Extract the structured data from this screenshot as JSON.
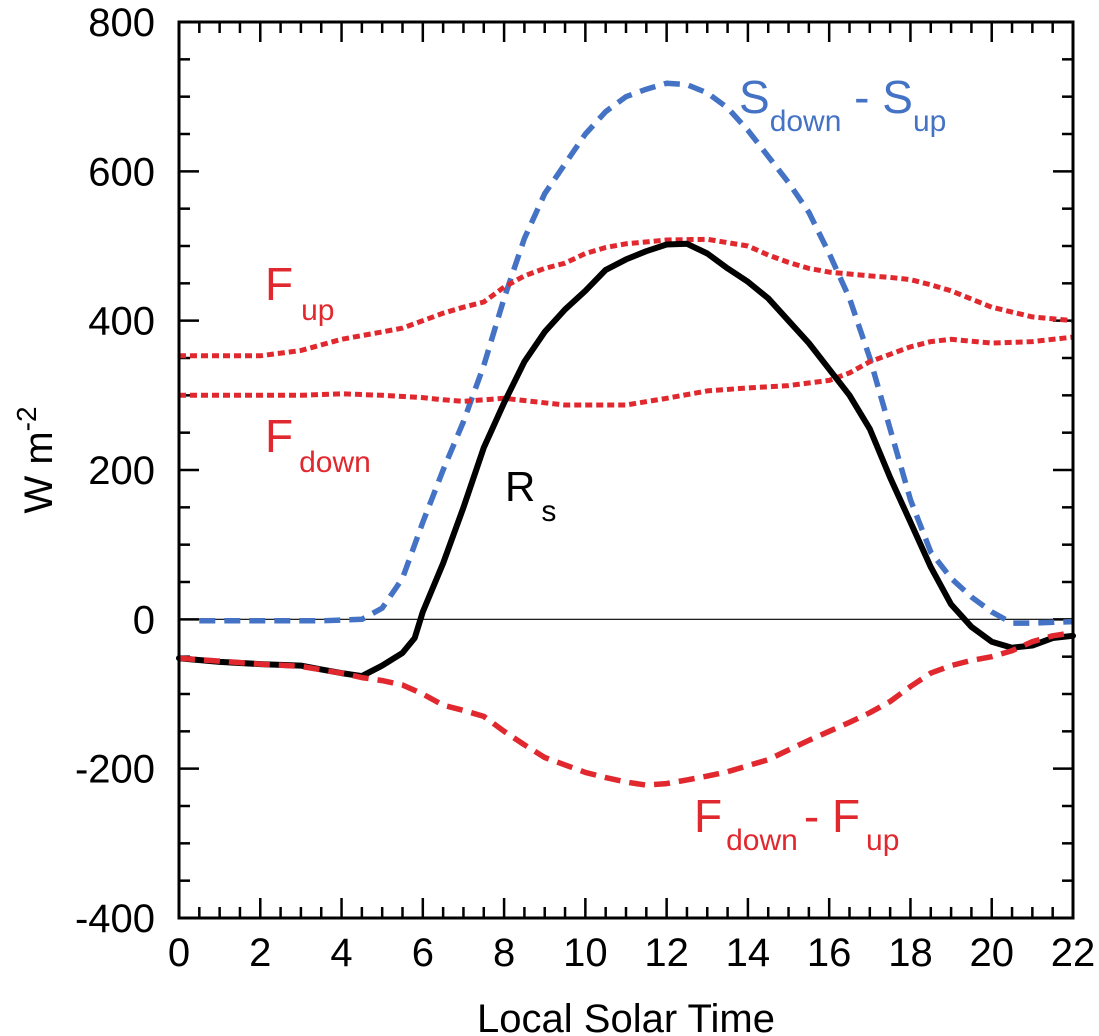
{
  "chart_data": {
    "type": "line",
    "title": "",
    "xlabel": "Local Solar Time",
    "ylabel": "W m",
    "ylabel_sup": "-2",
    "xlim": [
      0,
      22
    ],
    "ylim": [
      -400,
      800
    ],
    "xticks": [
      0,
      2,
      4,
      6,
      8,
      10,
      12,
      14,
      16,
      18,
      20,
      22
    ],
    "yticks": [
      -400,
      -200,
      0,
      200,
      400,
      600,
      800
    ],
    "x_minor_step": 0.5,
    "y_minor_step": 50,
    "zero_line": true,
    "grid": false,
    "series": [
      {
        "name": "S_down - S_up",
        "color": "#4472c4",
        "dash": "dashed",
        "points": [
          [
            0.5,
            -2
          ],
          [
            2,
            -2
          ],
          [
            3.5,
            -2
          ],
          [
            4.5,
            0
          ],
          [
            5,
            15
          ],
          [
            5.5,
            55
          ],
          [
            6,
            130
          ],
          [
            6.5,
            200
          ],
          [
            7,
            265
          ],
          [
            7.5,
            340
          ],
          [
            8,
            430
          ],
          [
            8.5,
            510
          ],
          [
            9,
            570
          ],
          [
            9.5,
            610
          ],
          [
            10,
            650
          ],
          [
            10.5,
            680
          ],
          [
            11,
            700
          ],
          [
            11.5,
            710
          ],
          [
            12,
            718
          ],
          [
            12.5,
            716
          ],
          [
            13,
            705
          ],
          [
            13.5,
            685
          ],
          [
            14,
            655
          ],
          [
            14.5,
            620
          ],
          [
            15,
            585
          ],
          [
            15.5,
            545
          ],
          [
            16,
            490
          ],
          [
            16.5,
            430
          ],
          [
            17,
            350
          ],
          [
            17.5,
            255
          ],
          [
            18,
            160
          ],
          [
            18.5,
            90
          ],
          [
            19,
            55
          ],
          [
            19.5,
            30
          ],
          [
            20,
            10
          ],
          [
            20.5,
            -5
          ],
          [
            21,
            -5
          ],
          [
            22,
            -3
          ]
        ]
      },
      {
        "name": "F_up",
        "color": "#e0282e",
        "dash": "dotted",
        "points": [
          [
            0,
            353
          ],
          [
            1,
            353
          ],
          [
            2,
            353
          ],
          [
            3,
            360
          ],
          [
            4,
            375
          ],
          [
            5,
            385
          ],
          [
            5.5,
            390
          ],
          [
            6,
            400
          ],
          [
            6.5,
            410
          ],
          [
            7,
            418
          ],
          [
            7.5,
            425
          ],
          [
            8,
            445
          ],
          [
            8.5,
            460
          ],
          [
            9,
            470
          ],
          [
            9.5,
            477
          ],
          [
            10,
            490
          ],
          [
            10.5,
            498
          ],
          [
            11,
            503
          ],
          [
            12,
            508
          ],
          [
            13,
            509
          ],
          [
            14,
            500
          ],
          [
            14.5,
            488
          ],
          [
            15,
            478
          ],
          [
            15.5,
            470
          ],
          [
            16,
            465
          ],
          [
            17,
            460
          ],
          [
            17.5,
            458
          ],
          [
            18,
            455
          ],
          [
            18.5,
            448
          ],
          [
            19,
            440
          ],
          [
            20,
            418
          ],
          [
            21,
            405
          ],
          [
            22,
            400
          ]
        ]
      },
      {
        "name": "F_down",
        "color": "#e0282e",
        "dash": "dotted",
        "points": [
          [
            0,
            300
          ],
          [
            1,
            300
          ],
          [
            2,
            300
          ],
          [
            3,
            300
          ],
          [
            4,
            302
          ],
          [
            5,
            300
          ],
          [
            6,
            297
          ],
          [
            6.5,
            294
          ],
          [
            7,
            292
          ],
          [
            8,
            296
          ],
          [
            9,
            290
          ],
          [
            9.5,
            287
          ],
          [
            10,
            287
          ],
          [
            11,
            287
          ],
          [
            12,
            296
          ],
          [
            13,
            306
          ],
          [
            14,
            310
          ],
          [
            15,
            313
          ],
          [
            16,
            320
          ],
          [
            16.5,
            330
          ],
          [
            17,
            345
          ],
          [
            17.5,
            355
          ],
          [
            18,
            365
          ],
          [
            18.5,
            372
          ],
          [
            19,
            375
          ],
          [
            20,
            370
          ],
          [
            21,
            372
          ],
          [
            22,
            378
          ]
        ]
      },
      {
        "name": "R_s",
        "color": "#000000",
        "dash": "solid",
        "points": [
          [
            0,
            -52
          ],
          [
            1,
            -57
          ],
          [
            2,
            -60
          ],
          [
            3,
            -62
          ],
          [
            3.5,
            -67
          ],
          [
            4,
            -72
          ],
          [
            4.5,
            -76
          ],
          [
            5,
            -62
          ],
          [
            5.5,
            -45
          ],
          [
            5.8,
            -25
          ],
          [
            6,
            10
          ],
          [
            6.5,
            75
          ],
          [
            7,
            150
          ],
          [
            7.5,
            230
          ],
          [
            8,
            290
          ],
          [
            8.5,
            345
          ],
          [
            9,
            385
          ],
          [
            9.5,
            415
          ],
          [
            10,
            440
          ],
          [
            10.5,
            468
          ],
          [
            11,
            482
          ],
          [
            11.5,
            493
          ],
          [
            12,
            502
          ],
          [
            12.5,
            503
          ],
          [
            13,
            490
          ],
          [
            13.5,
            470
          ],
          [
            14,
            452
          ],
          [
            14.5,
            430
          ],
          [
            15,
            400
          ],
          [
            15.5,
            370
          ],
          [
            16,
            335
          ],
          [
            16.5,
            300
          ],
          [
            17,
            255
          ],
          [
            17.5,
            190
          ],
          [
            18,
            130
          ],
          [
            18.5,
            70
          ],
          [
            19,
            20
          ],
          [
            19.5,
            -10
          ],
          [
            20,
            -30
          ],
          [
            20.5,
            -38
          ],
          [
            21,
            -35
          ],
          [
            21.5,
            -25
          ],
          [
            22,
            -22
          ]
        ]
      },
      {
        "name": "F_down - F_up",
        "color": "#e0282e",
        "dash": "dashed",
        "points": [
          [
            0,
            -52
          ],
          [
            1,
            -56
          ],
          [
            2,
            -60
          ],
          [
            3,
            -63
          ],
          [
            4,
            -72
          ],
          [
            4.5,
            -78
          ],
          [
            5,
            -82
          ],
          [
            5.5,
            -88
          ],
          [
            6,
            -100
          ],
          [
            6.5,
            -115
          ],
          [
            7,
            -122
          ],
          [
            7.5,
            -130
          ],
          [
            8,
            -150
          ],
          [
            8.5,
            -168
          ],
          [
            9,
            -185
          ],
          [
            9.5,
            -195
          ],
          [
            10,
            -205
          ],
          [
            10.5,
            -212
          ],
          [
            11,
            -218
          ],
          [
            11.5,
            -222
          ],
          [
            12,
            -220
          ],
          [
            12.5,
            -215
          ],
          [
            13,
            -210
          ],
          [
            13.5,
            -204
          ],
          [
            14,
            -196
          ],
          [
            14.5,
            -188
          ],
          [
            15,
            -175
          ],
          [
            15.5,
            -162
          ],
          [
            16,
            -150
          ],
          [
            16.5,
            -138
          ],
          [
            17,
            -125
          ],
          [
            17.5,
            -110
          ],
          [
            18,
            -90
          ],
          [
            18.5,
            -72
          ],
          [
            19,
            -62
          ],
          [
            19.5,
            -55
          ],
          [
            20,
            -50
          ],
          [
            20.5,
            -42
          ],
          [
            21,
            -30
          ],
          [
            21.5,
            -22
          ],
          [
            22,
            -18
          ]
        ]
      }
    ],
    "annotations": [
      {
        "key": "s",
        "base": "S",
        "sub": "down",
        "between": " - ",
        "base2": "S",
        "sub2": "up",
        "color": "#4472c4"
      },
      {
        "key": "fup",
        "base": "F",
        "sub": "up",
        "color": "#e0282e"
      },
      {
        "key": "fdown",
        "base": "F",
        "sub": "down",
        "color": "#e0282e"
      },
      {
        "key": "rs",
        "base": "R",
        "sub": "s",
        "color": "#000000"
      },
      {
        "key": "fnet",
        "base": "F",
        "sub": "down",
        "between": "- ",
        "base2": "F",
        "sub2": "up",
        "color": "#e0282e"
      }
    ]
  }
}
